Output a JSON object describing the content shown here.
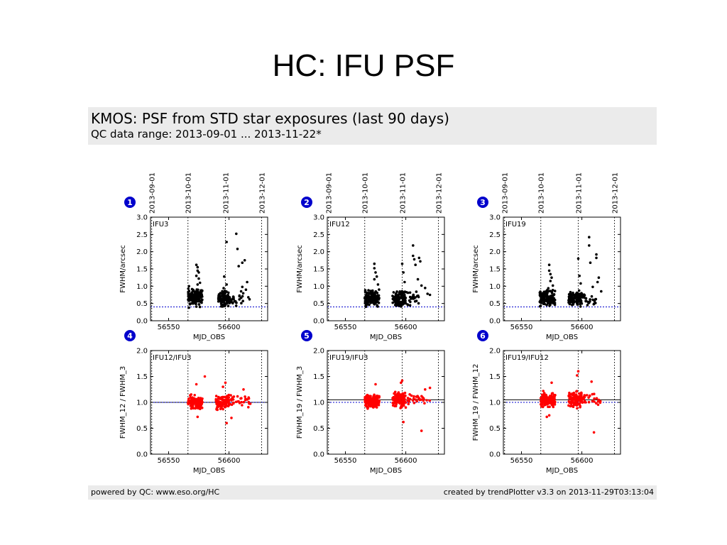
{
  "slide": {
    "title": "HC: IFU PSF"
  },
  "header": {
    "title": "KMOS: PSF from STD star exposures (last 90 days)",
    "range": "QC data range: 2013-09-01 ... 2013-11-22*"
  },
  "footer": {
    "left": "powered by QC: www.eso.org/HC",
    "right": "created by trendPlotter v3.3 on 2013-11-29T03:13:04"
  },
  "colors": {
    "marker_black": "#000000",
    "marker_red": "#ff0000",
    "reference_line": "#0000cc",
    "badge": "#0000cc"
  },
  "chart_data": [
    {
      "id": 1,
      "type": "scatter",
      "title": "IFU3",
      "xlabel": "MJD_OBS",
      "ylabel": "FWHM/arcsec",
      "xlim": [
        56535,
        56632
      ],
      "ylim": [
        0,
        3.0
      ],
      "xticks": [
        56550,
        56600
      ],
      "yticks": [
        "0.0",
        "0.5",
        "1.0",
        "1.5",
        "2.0",
        "2.5",
        "3.0"
      ],
      "date_markers": [
        {
          "x": 56536,
          "label": "2013-09-01"
        },
        {
          "x": 56566,
          "label": "2013-10-01"
        },
        {
          "x": 56597,
          "label": "2013-11-01"
        },
        {
          "x": 56627,
          "label": "2013-12-01"
        }
      ],
      "ref_line": {
        "y": 0.4,
        "style": "dotted"
      },
      "color": "black",
      "seed": 11,
      "clusters": [
        [
          56566,
          56578,
          0.68,
          0.16,
          140
        ],
        [
          56591,
          56600,
          0.66,
          0.16,
          110
        ],
        [
          56600,
          56612,
          0.62,
          0.12,
          25
        ]
      ],
      "outliers": [
        [
          56573,
          1.62
        ],
        [
          56574,
          1.55
        ],
        [
          56574,
          1.45
        ],
        [
          56575,
          1.4
        ],
        [
          56573,
          1.3
        ],
        [
          56575,
          1.22
        ],
        [
          56576,
          1.1
        ],
        [
          56574,
          1.05
        ],
        [
          56596,
          1.28
        ],
        [
          56598,
          1.05
        ],
        [
          56598,
          2.28
        ],
        [
          56606,
          2.52
        ],
        [
          56607,
          2.08
        ],
        [
          56608,
          1.58
        ],
        [
          56611,
          1.68
        ],
        [
          56613,
          1.75
        ],
        [
          56615,
          1.12
        ],
        [
          56611,
          0.98
        ],
        [
          56614,
          0.9
        ],
        [
          56616,
          0.68
        ],
        [
          56617,
          0.62
        ],
        [
          56610,
          0.85
        ]
      ]
    },
    {
      "id": 2,
      "type": "scatter",
      "title": "IFU12",
      "xlabel": "MJD_OBS",
      "ylabel": "FWHM/arcsec",
      "xlim": [
        56535,
        56632
      ],
      "ylim": [
        0,
        3.0
      ],
      "xticks": [
        56550,
        56600
      ],
      "yticks": [
        "0.0",
        "0.5",
        "1.0",
        "1.5",
        "2.0",
        "2.5",
        "3.0"
      ],
      "date_markers": [
        {
          "x": 56536,
          "label": "2013-09-01"
        },
        {
          "x": 56566,
          "label": "2013-10-01"
        },
        {
          "x": 56597,
          "label": "2013-11-01"
        },
        {
          "x": 56627,
          "label": "2013-12-01"
        }
      ],
      "ref_line": {
        "y": 0.4,
        "style": "dotted"
      },
      "color": "black",
      "seed": 23,
      "clusters": [
        [
          56566,
          56578,
          0.66,
          0.16,
          140
        ],
        [
          56589,
          56600,
          0.62,
          0.15,
          110
        ],
        [
          56600,
          56612,
          0.65,
          0.14,
          25
        ]
      ],
      "outliers": [
        [
          56574,
          1.65
        ],
        [
          56574,
          1.52
        ],
        [
          56575,
          1.4
        ],
        [
          56576,
          1.28
        ],
        [
          56574,
          1.2
        ],
        [
          56577,
          1.05
        ],
        [
          56597,
          1.65
        ],
        [
          56598,
          1.4
        ],
        [
          56599,
          1.12
        ],
        [
          56606,
          2.18
        ],
        [
          56606,
          1.88
        ],
        [
          56607,
          1.78
        ],
        [
          56608,
          1.62
        ],
        [
          56611,
          1.82
        ],
        [
          56612,
          1.72
        ],
        [
          56610,
          1.2
        ],
        [
          56613,
          1.02
        ],
        [
          56616,
          0.95
        ],
        [
          56618,
          0.78
        ],
        [
          56620,
          0.75
        ]
      ]
    },
    {
      "id": 3,
      "type": "scatter",
      "title": "IFU19",
      "xlabel": "MJD_OBS",
      "ylabel": "FWHM/arcsec",
      "xlim": [
        56535,
        56632
      ],
      "ylim": [
        0,
        3.0
      ],
      "xticks": [
        56550,
        56600
      ],
      "yticks": [
        "0.0",
        "0.5",
        "1.0",
        "1.5",
        "2.0",
        "2.5",
        "3.0"
      ],
      "date_markers": [
        {
          "x": 56536,
          "label": "2013-09-01"
        },
        {
          "x": 56566,
          "label": "2013-10-01"
        },
        {
          "x": 56597,
          "label": "2013-11-01"
        },
        {
          "x": 56627,
          "label": "2013-12-01"
        }
      ],
      "ref_line": {
        "y": 0.4,
        "style": "dotted"
      },
      "color": "black",
      "seed": 37,
      "clusters": [
        [
          56565,
          56578,
          0.65,
          0.15,
          140
        ],
        [
          56589,
          56600,
          0.62,
          0.14,
          110
        ],
        [
          56600,
          56612,
          0.64,
          0.12,
          25
        ]
      ],
      "outliers": [
        [
          56573,
          1.62
        ],
        [
          56573,
          1.45
        ],
        [
          56574,
          1.35
        ],
        [
          56575,
          1.25
        ],
        [
          56574,
          1.15
        ],
        [
          56576,
          1.02
        ],
        [
          56597,
          1.8
        ],
        [
          56598,
          1.3
        ],
        [
          56599,
          1.08
        ],
        [
          56606,
          2.42
        ],
        [
          56606,
          2.18
        ],
        [
          56607,
          1.68
        ],
        [
          56612,
          1.92
        ],
        [
          56612,
          1.82
        ],
        [
          56613,
          1.12
        ],
        [
          56614,
          1.25
        ],
        [
          56616,
          0.85
        ],
        [
          56609,
          0.98
        ]
      ]
    },
    {
      "id": 4,
      "type": "scatter",
      "title": "IFU12/IFU3",
      "xlabel": "MJD_OBS",
      "ylabel": "FWHM_12 / FWHM_3",
      "xlim": [
        56535,
        56632
      ],
      "ylim": [
        0,
        2.0
      ],
      "xticks": [
        56550,
        56600
      ],
      "yticks": [
        "0.0",
        "0.5",
        "1.0",
        "1.5",
        "2.0"
      ],
      "date_markers": [
        {
          "x": 56536,
          "label": "2013-09-01"
        },
        {
          "x": 56566,
          "label": "2013-10-01"
        },
        {
          "x": 56597,
          "label": "2013-11-01"
        },
        {
          "x": 56627,
          "label": "2013-12-01"
        }
      ],
      "ref_line": {
        "y": 1.0,
        "style": "solid"
      },
      "color": "red",
      "seed": 41,
      "clusters": [
        [
          56566,
          56578,
          1.0,
          0.08,
          140
        ],
        [
          56589,
          56600,
          1.0,
          0.09,
          110
        ],
        [
          56600,
          56618,
          1.02,
          0.07,
          30
        ]
      ],
      "outliers": [
        [
          56580,
          1.5
        ],
        [
          56573,
          1.35
        ],
        [
          56574,
          0.72
        ],
        [
          56598,
          0.6
        ],
        [
          56597,
          1.38
        ],
        [
          56602,
          0.7
        ],
        [
          56595,
          1.3
        ],
        [
          56612,
          1.25
        ]
      ]
    },
    {
      "id": 5,
      "type": "scatter",
      "title": "IFU19/IFU3",
      "xlabel": "MJD_OBS",
      "ylabel": "FWHM_19 / FWHM_3",
      "xlim": [
        56535,
        56632
      ],
      "ylim": [
        0,
        2.0
      ],
      "xticks": [
        56550,
        56600
      ],
      "yticks": [
        "0.0",
        "0.5",
        "1.0",
        "1.5",
        "2.0"
      ],
      "date_markers": [
        {
          "x": 56536,
          "label": "2013-09-01"
        },
        {
          "x": 56566,
          "label": "2013-10-01"
        },
        {
          "x": 56597,
          "label": "2013-11-01"
        },
        {
          "x": 56627,
          "label": "2013-12-01"
        }
      ],
      "ref_line": {
        "y": 1.05,
        "style": "solid"
      },
      "color": "red",
      "seed": 53,
      "clusters": [
        [
          56566,
          56578,
          1.03,
          0.09,
          140
        ],
        [
          56589,
          56600,
          1.05,
          0.1,
          110
        ],
        [
          56600,
          56620,
          1.08,
          0.09,
          30
        ]
      ],
      "outliers": [
        [
          56613,
          0.45
        ],
        [
          56598,
          0.62
        ],
        [
          56597,
          1.42
        ],
        [
          56596,
          1.38
        ],
        [
          56575,
          1.35
        ],
        [
          56620,
          1.28
        ],
        [
          56616,
          1.25
        ]
      ]
    },
    {
      "id": 6,
      "type": "scatter",
      "title": "IFU19/IFU12",
      "xlabel": "MJD_OBS",
      "ylabel": "FWHM_19 / FWHM_12",
      "xlim": [
        56535,
        56632
      ],
      "ylim": [
        0,
        2.0
      ],
      "xticks": [
        56550,
        56600
      ],
      "yticks": [
        "0.0",
        "0.5",
        "1.0",
        "1.5",
        "2.0"
      ],
      "date_markers": [
        {
          "x": 56536,
          "label": "2013-09-01"
        },
        {
          "x": 56566,
          "label": "2013-10-01"
        },
        {
          "x": 56597,
          "label": "2013-11-01"
        },
        {
          "x": 56627,
          "label": "2013-12-01"
        }
      ],
      "ref_line": {
        "y": 1.05,
        "style": "solid"
      },
      "color": "red",
      "seed": 67,
      "clusters": [
        [
          56566,
          56578,
          1.05,
          0.09,
          140
        ],
        [
          56589,
          56600,
          1.06,
          0.1,
          110
        ],
        [
          56600,
          56616,
          1.07,
          0.09,
          30
        ]
      ],
      "outliers": [
        [
          56597,
          1.6
        ],
        [
          56596,
          1.52
        ],
        [
          56610,
          0.42
        ],
        [
          56571,
          0.72
        ],
        [
          56573,
          0.75
        ],
        [
          56575,
          1.38
        ],
        [
          56608,
          1.4
        ]
      ]
    }
  ]
}
